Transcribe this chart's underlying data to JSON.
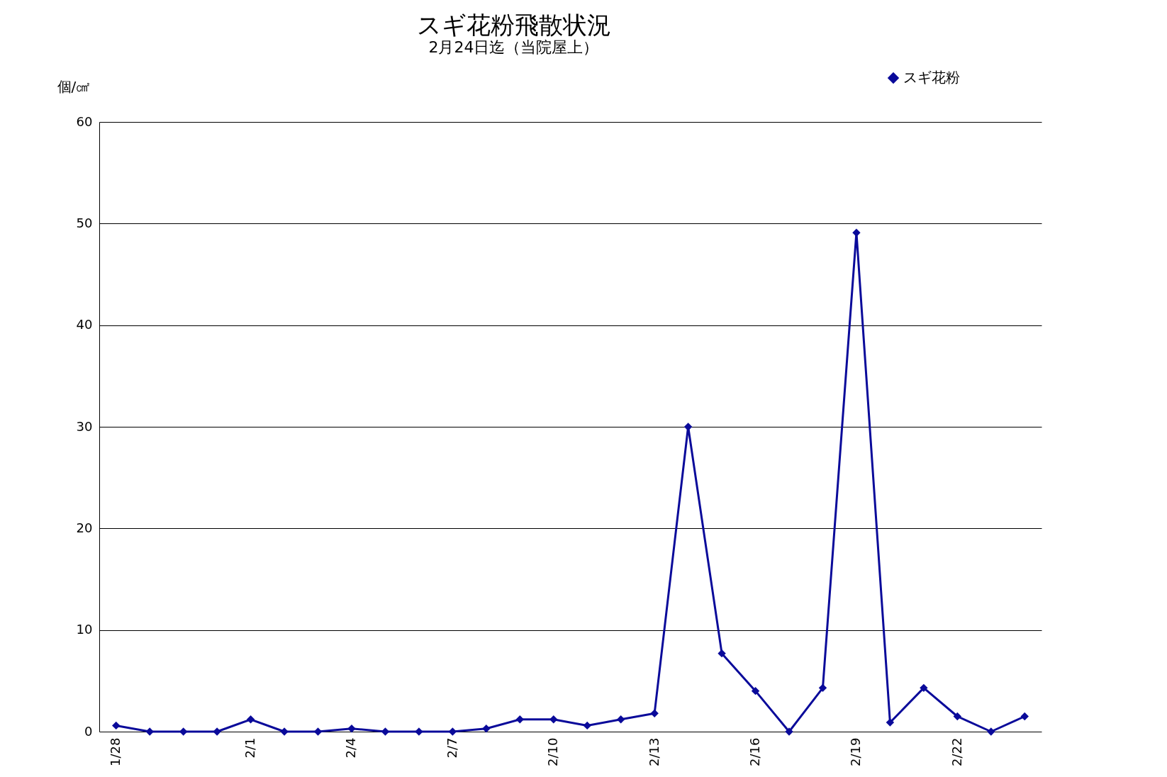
{
  "chart_data": {
    "type": "line",
    "title": "スギ花粉飛散状況",
    "subtitle": "2月24日迄（当院屋上）",
    "ylabel": "個/㎠",
    "categories": [
      "1/28",
      null,
      null,
      null,
      "2/1",
      null,
      null,
      "2/4",
      null,
      null,
      "2/7",
      null,
      null,
      "2/10",
      null,
      null,
      "2/13",
      null,
      null,
      "2/16",
      null,
      null,
      "2/19",
      null,
      null,
      "2/22",
      null,
      null
    ],
    "series": [
      {
        "name": "スギ花粉",
        "color": "#0a0a9a",
        "values": [
          0.6,
          0,
          0,
          0,
          1.2,
          0,
          0,
          0.3,
          0,
          0,
          0,
          0.3,
          1.2,
          1.2,
          0.6,
          1.2,
          1.8,
          30,
          7.7,
          4.0,
          0,
          4.3,
          49.1,
          0.9,
          4.3,
          1.5,
          0,
          1.5
        ]
      }
    ],
    "ylim": [
      0,
      60
    ],
    "yticks": [
      0,
      10,
      20,
      30,
      40,
      50,
      60
    ],
    "grid": "y",
    "legend": "top right",
    "marker": "diamond",
    "line_style": "solid"
  }
}
